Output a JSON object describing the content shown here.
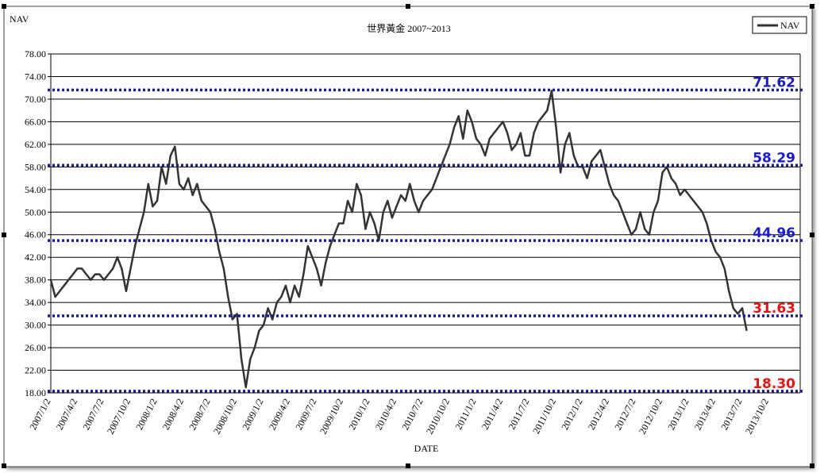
{
  "chart_data": {
    "type": "line",
    "title": "世界黃金 2007~2013",
    "y_label": "NAV",
    "x_label": "DATE",
    "legend": "top-right",
    "grid": true,
    "categories": [
      "2007/1/2",
      null,
      null,
      null,
      null,
      null,
      "2007/4/2",
      null,
      null,
      null,
      null,
      null,
      "2007/7/2",
      null,
      null,
      null,
      null,
      null,
      "2007/10/2",
      null,
      null,
      null,
      null,
      null,
      "2008/1/2",
      null,
      null,
      null,
      null,
      null,
      "2008/4/2",
      null,
      null,
      null,
      null,
      null,
      "2008/7/2",
      null,
      null,
      null,
      null,
      null,
      "2008/10/2",
      null,
      null,
      null,
      null,
      null,
      "2009/1/2",
      null,
      null,
      null,
      null,
      null,
      "2009/4/2",
      null,
      null,
      null,
      null,
      null,
      "2009/7/2",
      null,
      null,
      null,
      null,
      null,
      "2009/10/2",
      null,
      null,
      null,
      null,
      null,
      "2010/1/2",
      null,
      null,
      null,
      null,
      null,
      "2010/4/2",
      null,
      null,
      null,
      null,
      null,
      "2010/7/2",
      null,
      null,
      null,
      null,
      null,
      "2010/10/2",
      null,
      null,
      null,
      null,
      null,
      "2011/1/2",
      null,
      null,
      null,
      null,
      null,
      "2011/4/2",
      null,
      null,
      null,
      null,
      null,
      "2011/7/2",
      null,
      null,
      null,
      null,
      null,
      "2011/10/2",
      null,
      null,
      null,
      null,
      null,
      "2012/1/2",
      null,
      null,
      null,
      null,
      null,
      "2012/4/2",
      null,
      null,
      null,
      null,
      null,
      "2012/7/2",
      null,
      null,
      null,
      null,
      null,
      "2012/10/2",
      null,
      null,
      null,
      null,
      null,
      "2013/1/2",
      null,
      null,
      null,
      null,
      null,
      "2013/4/2",
      null,
      null,
      null,
      null,
      null,
      "2013/7/2",
      null,
      null,
      null,
      null,
      null,
      "2013/10/2"
    ],
    "series": [
      {
        "name": "NAV",
        "color": "#333333",
        "values": [
          38,
          35,
          36,
          37,
          38,
          39,
          40,
          40,
          39,
          38,
          39,
          39,
          38,
          39,
          40,
          42,
          40,
          36,
          40,
          44,
          47,
          50,
          55,
          51,
          52,
          58,
          55,
          60,
          61.6,
          55,
          54,
          56,
          53,
          55,
          52,
          51,
          50,
          47,
          43,
          40,
          35,
          31,
          32,
          24,
          19,
          24,
          26,
          29,
          30,
          33,
          31,
          34,
          35,
          37,
          34,
          37,
          35,
          39,
          44,
          42,
          40,
          37,
          41,
          44,
          46,
          48,
          48,
          52,
          50,
          55,
          53,
          47,
          50,
          48,
          45,
          50,
          52,
          49,
          51,
          53,
          52,
          55,
          52,
          50,
          52,
          53,
          54,
          56,
          58,
          60,
          62,
          65,
          67,
          63,
          68,
          66,
          63,
          62,
          60,
          63,
          64,
          65,
          66,
          64,
          61,
          62,
          64,
          60,
          60,
          64,
          66,
          67,
          68,
          71.5,
          65,
          57,
          62,
          64,
          60,
          58,
          58,
          56,
          59,
          60,
          61,
          58,
          55,
          53,
          52,
          50,
          48,
          46,
          47,
          50,
          47,
          46,
          50,
          52,
          57,
          58,
          56,
          55,
          53,
          54,
          53,
          52,
          51,
          50,
          48,
          45,
          43,
          42,
          40,
          36,
          33,
          32,
          33,
          29,
          null,
          null,
          null,
          null,
          null
        ]
      }
    ],
    "ylim": [
      18,
      78
    ],
    "yticks": [
      {
        "value": 18,
        "label": "18.00"
      },
      {
        "value": 22,
        "label": "22.00"
      },
      {
        "value": 26,
        "label": "26.00"
      },
      {
        "value": 30,
        "label": "30.00"
      },
      {
        "value": 34,
        "label": "34.00"
      },
      {
        "value": 38,
        "label": "38.00"
      },
      {
        "value": 42,
        "label": "42.00"
      },
      {
        "value": 46,
        "label": "46.00"
      },
      {
        "value": 50,
        "label": "50.00"
      },
      {
        "value": 54,
        "label": "54.00"
      },
      {
        "value": 58,
        "label": "58.00"
      },
      {
        "value": 62,
        "label": "62.00"
      },
      {
        "value": 66,
        "label": "66.00"
      },
      {
        "value": 70,
        "label": "70.00"
      },
      {
        "value": 74,
        "label": "74.00"
      },
      {
        "value": 78,
        "label": "78.00"
      }
    ],
    "reference_lines": [
      {
        "value": 71.62,
        "label": "71.62",
        "color": "#1a1ad0"
      },
      {
        "value": 58.29,
        "label": "58.29",
        "color": "#1a1ad0"
      },
      {
        "value": 44.96,
        "label": "44.96",
        "color": "#1a1ad0"
      },
      {
        "value": 31.63,
        "label": "31.63",
        "color": "#ee1111"
      },
      {
        "value": 18.3,
        "label": "18.30",
        "color": "#ee1111"
      }
    ]
  }
}
